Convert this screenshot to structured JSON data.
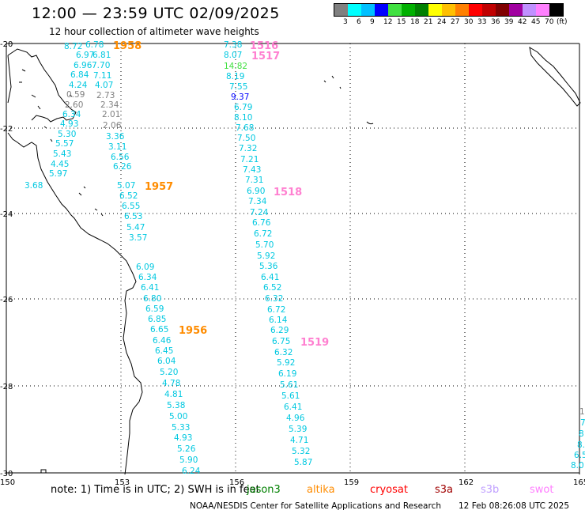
{
  "title": "12:00 — 23:59 UTC 02/09/2025",
  "subtitle": "12 hour collection of altimeter wave heights",
  "legend": {
    "unit_label": "(ft)",
    "colors": [
      "#808080",
      "#00ffff",
      "#00c0ff",
      "#0000ff",
      "#40e040",
      "#00b000",
      "#008000",
      "#ffff00",
      "#ffc000",
      "#ff8000",
      "#ff0000",
      "#c00000",
      "#800000",
      "#a000a0",
      "#c090ff",
      "#ff80ff",
      "#000000"
    ],
    "ticks": [
      "3",
      "6",
      "9",
      "12",
      "15",
      "18",
      "21",
      "24",
      "27",
      "30",
      "33",
      "36",
      "39",
      "42",
      "45",
      "70"
    ]
  },
  "axes": {
    "lon_labels": [
      "150",
      "153",
      "156",
      "159",
      "162",
      "165"
    ],
    "lat_labels": [
      "-20",
      "-22",
      "-24",
      "-26",
      "-28",
      "-30"
    ]
  },
  "pass_labels": [
    {
      "text": "1958",
      "color": "#ff8c00"
    },
    {
      "text": "1957",
      "color": "#ff8c00"
    },
    {
      "text": "1956",
      "color": "#ff8c00"
    },
    {
      "text": "1516",
      "color": "#ff7fd0"
    },
    {
      "text": "1517",
      "color": "#ff7fd0"
    },
    {
      "text": "1518",
      "color": "#ff7fd0"
    },
    {
      "text": "1519",
      "color": "#ff7fd0"
    }
  ],
  "track1": {
    "values": [
      "6.78",
      "8.72",
      "6.81",
      "6.97",
      "6.96",
      "7.70",
      "6.84",
      "7.11",
      "4.24",
      "4.07",
      "0.59",
      "2.73",
      "2.60",
      "2.34",
      "6.34",
      "2.01",
      "4.93",
      "2.06",
      "5.30",
      "3.36",
      "5.57",
      "3.11",
      "5.43",
      "6.56",
      "4.45",
      "6.26",
      "5.97",
      "3.68"
    ]
  },
  "track2": {
    "values": [
      "5.07",
      "6.52",
      "6.55",
      "6.53",
      "5.47",
      "3.57",
      "6.09",
      "6.34",
      "6.41",
      "6.80",
      "6.59",
      "6.85",
      "6.65",
      "6.46",
      "6.45",
      "6.04",
      "5.20",
      "4.78",
      "4.81",
      "5.38",
      "5.00",
      "5.33",
      "4.93",
      "5.26",
      "5.90",
      "6.24"
    ]
  },
  "track3": {
    "values": [
      "7.38",
      "8.07",
      "14.82",
      "8.19",
      "7.55",
      "9.37",
      "6.79",
      "8.10",
      "7.68",
      "7.50",
      "7.32",
      "7.21",
      "7.43",
      "7.31",
      "6.90",
      "7.34",
      "7.24",
      "6.76",
      "6.72",
      "5.70",
      "5.92",
      "5.36",
      "6.41",
      "6.52",
      "6.32",
      "6.72",
      "6.14",
      "6.29",
      "6.75",
      "6.32",
      "5.92",
      "6.19",
      "5.61",
      "5.61",
      "6.41",
      "4.96",
      "5.39",
      "4.71",
      "5.32",
      "5.87"
    ]
  },
  "track4": {
    "values": [
      "1",
      "7",
      "8",
      "8.",
      "6.5",
      "8.0"
    ]
  },
  "note": "note: 1) Time is in UTC; 2) SWH is in feet",
  "satellites": [
    {
      "name": "jason3",
      "color": "#008000"
    },
    {
      "name": "altika",
      "color": "#ff8c00"
    },
    {
      "name": "cryosat",
      "color": "#ff0000"
    },
    {
      "name": "s3a",
      "color": "#a00000"
    },
    {
      "name": "s3b",
      "color": "#c0a0ff"
    },
    {
      "name": "swot",
      "color": "#ff80ff"
    }
  ],
  "credit": "NOAA/NESDIS Center for Satellite Applications and Research",
  "timestamp": "12 Feb 08:26:08 UTC 2025"
}
